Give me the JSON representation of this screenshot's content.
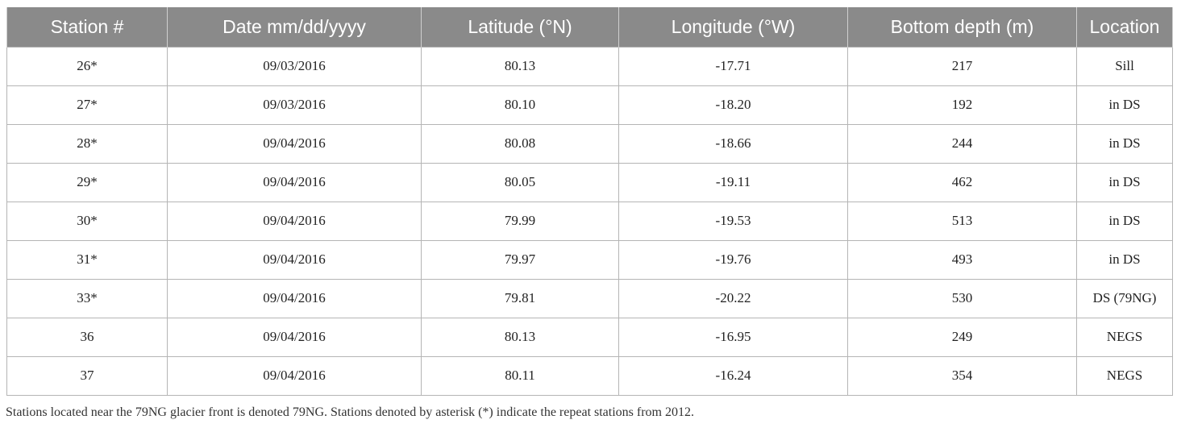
{
  "table": {
    "headers": [
      "Station #",
      "Date mm/dd/yyyy",
      "Latitude (°N)",
      "Longitude (°W)",
      "Bottom depth (m)",
      "Location"
    ],
    "rows": [
      [
        "26*",
        "09/03/2016",
        "80.13",
        "-17.71",
        "217",
        "Sill"
      ],
      [
        "27*",
        "09/03/2016",
        "80.10",
        "-18.20",
        "192",
        "in DS"
      ],
      [
        "28*",
        "09/04/2016",
        "80.08",
        "-18.66",
        "244",
        "in DS"
      ],
      [
        "29*",
        "09/04/2016",
        "80.05",
        "-19.11",
        "462",
        "in DS"
      ],
      [
        "30*",
        "09/04/2016",
        "79.99",
        "-19.53",
        "513",
        "in DS"
      ],
      [
        "31*",
        "09/04/2016",
        "79.97",
        "-19.76",
        "493",
        "in DS"
      ],
      [
        "33*",
        "09/04/2016",
        "79.81",
        "-20.22",
        "530",
        "DS (79NG)"
      ],
      [
        "36",
        "09/04/2016",
        "80.13",
        "-16.95",
        "249",
        "NEGS"
      ],
      [
        "37",
        "09/04/2016",
        "80.11",
        "-16.24",
        "354",
        "NEGS"
      ]
    ]
  },
  "footnote": "Stations located near the 79NG glacier front is denoted 79NG. Stations denoted by asterisk (*) indicate the repeat stations from 2012.",
  "colors": {
    "header_bg": "#8a8a8a",
    "header_text": "#ffffff",
    "grid": "#b5b5b5"
  }
}
